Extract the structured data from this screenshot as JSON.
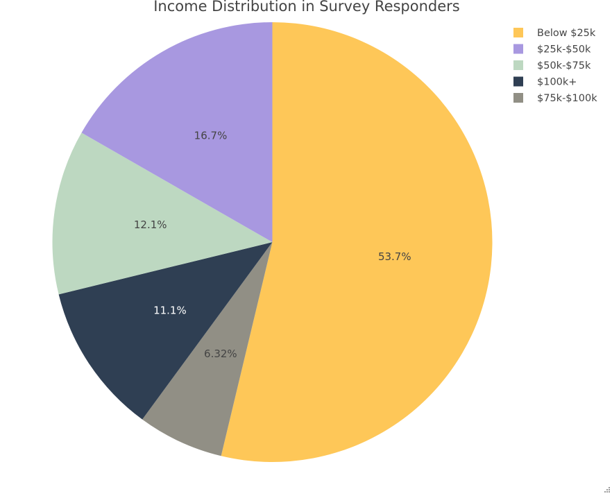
{
  "chart_data": {
    "type": "pie",
    "title": "Income Distribution in Survey Responders",
    "slices": [
      {
        "name": "Below $25k",
        "value": 53.7,
        "label": "53.7%",
        "color": "#FEC758",
        "label_color": "#444444"
      },
      {
        "name": "$75k-$100k",
        "value": 6.32,
        "label": "6.32%",
        "color": "#918F85",
        "label_color": "#444444"
      },
      {
        "name": "$100k+",
        "value": 11.1,
        "label": "11.1%",
        "color": "#2F3F53",
        "label_color": "#ffffff"
      },
      {
        "name": "$50k-$75k",
        "value": 12.1,
        "label": "12.1%",
        "color": "#BDD8C1",
        "label_color": "#444444"
      },
      {
        "name": "$25k-$50k",
        "value": 16.7,
        "label": "16.7%",
        "color": "#A898E0",
        "label_color": "#444444"
      }
    ],
    "legend": {
      "placement": "top-right",
      "order": [
        "Below $25k",
        "$25k-$50k",
        "$50k-$75k",
        "$100k+",
        "$75k-$100k"
      ]
    },
    "start_angle": "12 o'clock",
    "direction": "clockwise"
  }
}
